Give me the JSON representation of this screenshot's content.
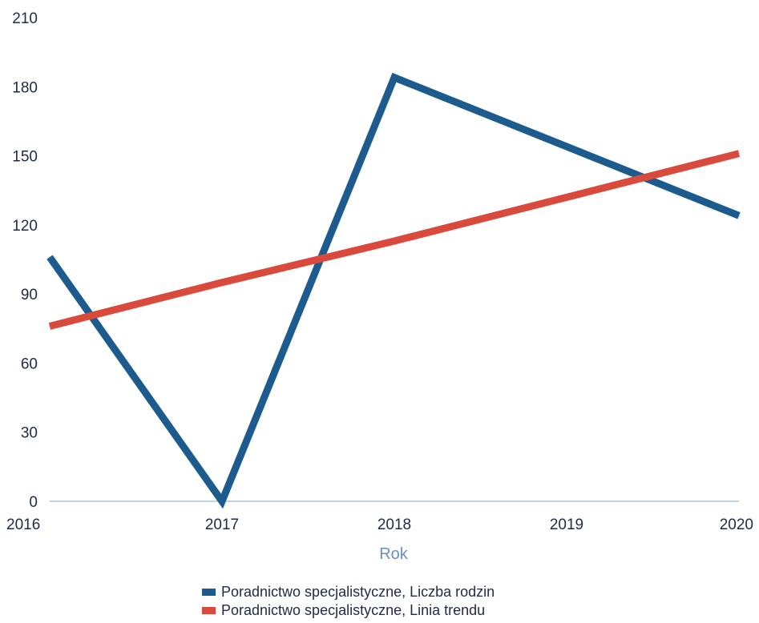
{
  "chart_data": {
    "type": "line",
    "x": [
      "2016",
      "2017",
      "2018",
      "2019",
      "2020"
    ],
    "xlabel": "Rok",
    "ylabel": "",
    "ylim": [
      0,
      210
    ],
    "yticks": [
      "0",
      "30",
      "60",
      "90",
      "120",
      "150",
      "180",
      "210"
    ],
    "grid": false,
    "legend_position": "bottom",
    "series": [
      {
        "name": "Poradnictwo specjalistyczne, Liczba rodzin",
        "values": [
          106,
          0,
          184,
          154,
          124
        ],
        "color": "#1d5b8f"
      },
      {
        "name": "Poradnictwo specjalistyczne, Linia trendu",
        "values": [
          76,
          95,
          113,
          132,
          151
        ],
        "color": "#d94a3d"
      }
    ],
    "colors": {
      "axis_title": "#6a8fc4",
      "baseline": "#a9c4e8",
      "text": "#1f2a44"
    }
  }
}
